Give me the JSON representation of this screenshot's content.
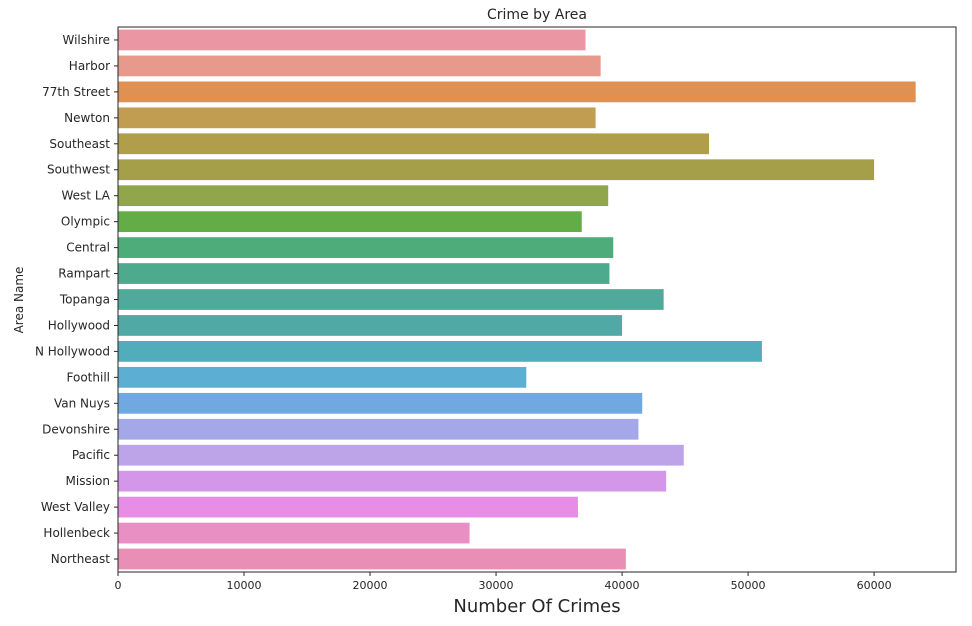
{
  "chart_data": {
    "type": "bar",
    "orientation": "horizontal",
    "title": "Crime by Area",
    "xlabel": "Number Of Crimes",
    "ylabel": "Area Name",
    "xlim": [
      0,
      66500
    ],
    "xticks": [
      0,
      10000,
      20000,
      30000,
      40000,
      50000,
      60000
    ],
    "grid": false,
    "categories": [
      "Wilshire",
      "Harbor",
      "77th Street",
      "Newton",
      "Southeast",
      "Southwest",
      "West LA",
      "Olympic",
      "Central",
      "Rampart",
      "Topanga",
      "Hollywood",
      "N Hollywood",
      "Foothill",
      "Van Nuys",
      "Devonshire",
      "Pacific",
      "Mission",
      "West Valley",
      "Hollenbeck",
      "Northeast"
    ],
    "values": [
      37100,
      38300,
      63300,
      37900,
      46900,
      60000,
      38900,
      36800,
      39300,
      39000,
      43300,
      40000,
      51100,
      32400,
      41600,
      41300,
      44900,
      43500,
      36500,
      27900,
      40300
    ],
    "colors": [
      "#ea96a3",
      "#e7998b",
      "#df9053",
      "#c09d51",
      "#b19e4a",
      "#a49f48",
      "#91a64a",
      "#63ad47",
      "#4dac79",
      "#4eaa8c",
      "#4faa9c",
      "#50a9a5",
      "#51acbb",
      "#5daed3",
      "#70a9e2",
      "#a4a8e9",
      "#bda4e8",
      "#d396e8",
      "#e88de5",
      "#e98fc5",
      "#e98fb5"
    ]
  }
}
